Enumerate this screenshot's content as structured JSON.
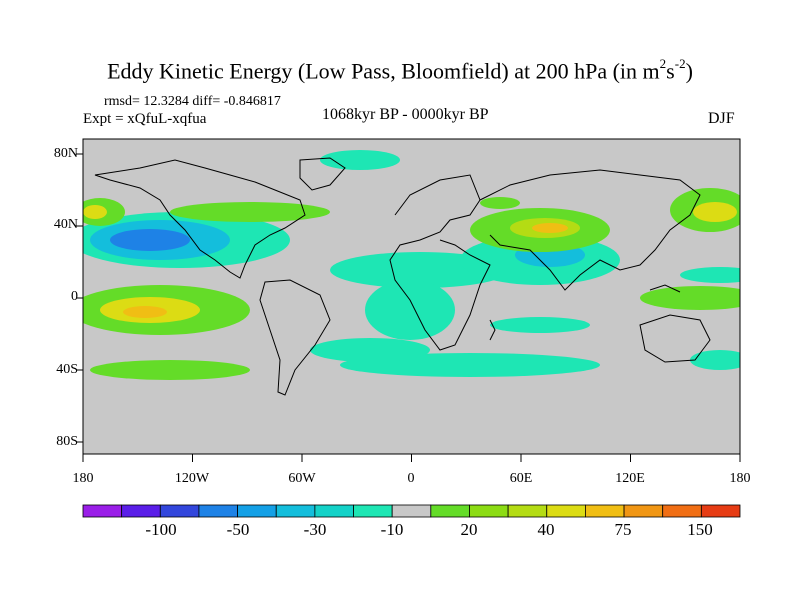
{
  "title_main": "Eddy Kinetic Energy (Low Pass, Bloomfield) at 200 hPa (in m",
  "title_sup1": "2",
  "title_mid": "s",
  "title_sup2": "-2",
  "title_end": ")",
  "stats": "rmsd= 12.3284 diff= -0.846817",
  "expt": "Expt = xQfuL-xqfua",
  "period": "1068kyr BP - 0000kyr BP",
  "season": "DJF",
  "lat_labels": [
    "80N",
    "40N",
    "0",
    "40S",
    "80S"
  ],
  "lon_labels": [
    "180",
    "120W",
    "60W",
    "0",
    "60E",
    "120E",
    "180"
  ],
  "colorbar": {
    "labels": [
      "-100",
      "-50",
      "-30",
      "-10",
      "20",
      "40",
      "75",
      "150"
    ],
    "colors": [
      "#9a1ee8",
      "#5a1ee8",
      "#3246dc",
      "#1e82e6",
      "#14a0e6",
      "#14bedc",
      "#14d2c8",
      "#1ee6b4",
      "#c8c8c8",
      "#64dc28",
      "#8cdc14",
      "#b4dc14",
      "#dcdc14",
      "#f0be14",
      "#f09614",
      "#f06e14",
      "#e63c14"
    ]
  },
  "colors": {
    "land_sea_background": "#c8c8c8",
    "coast": "#000000"
  }
}
